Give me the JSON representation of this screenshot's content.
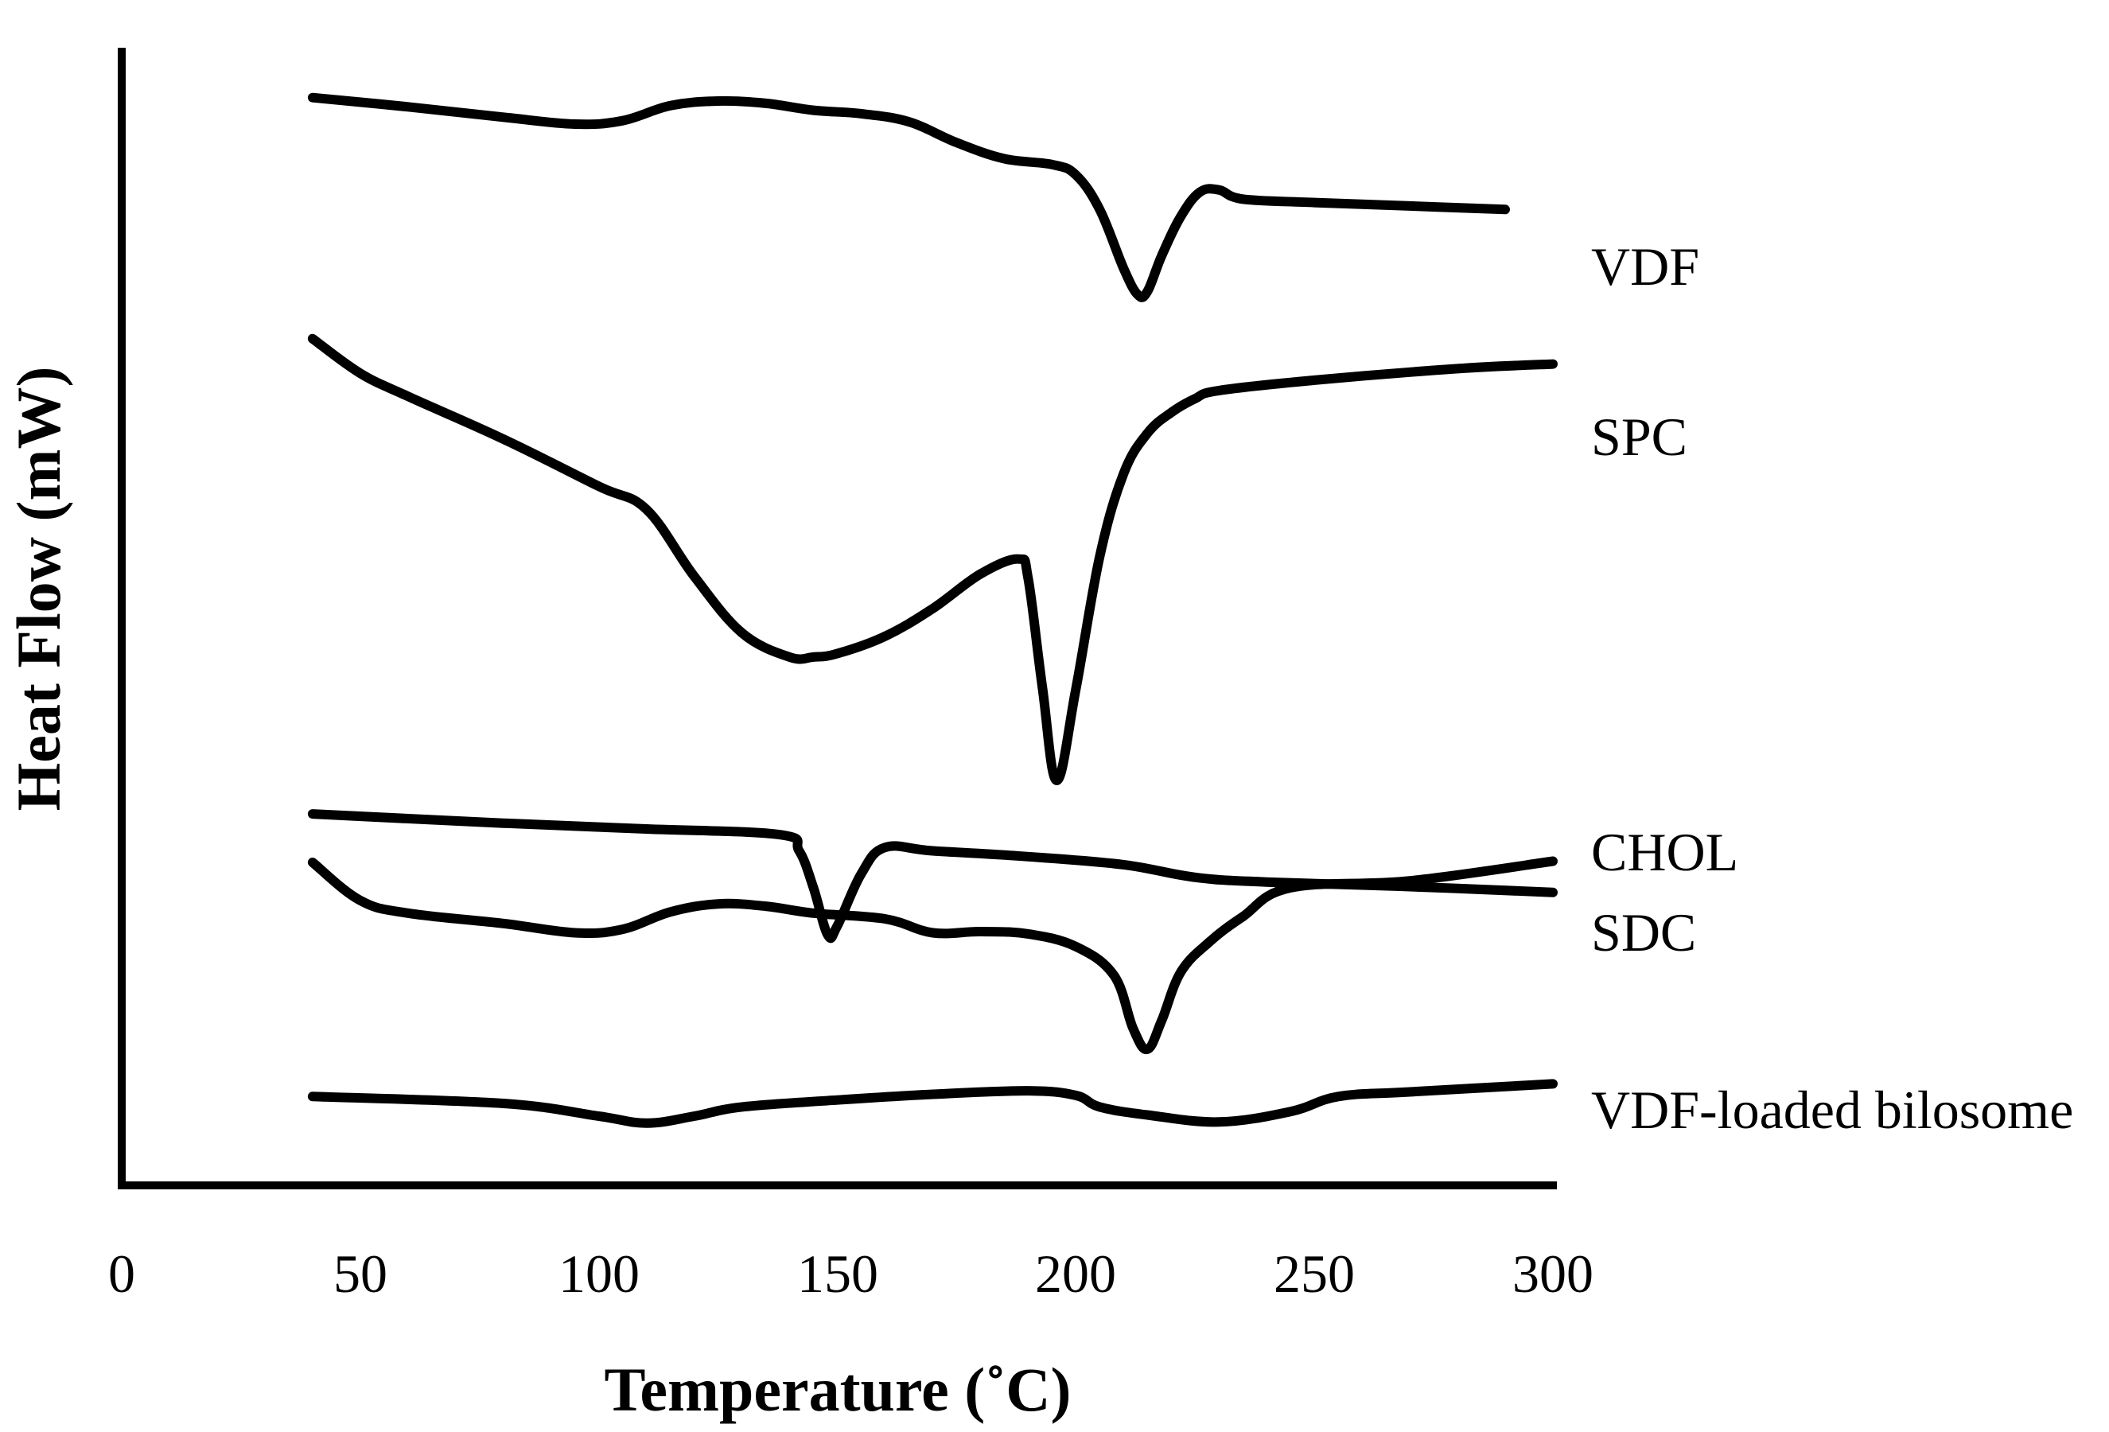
{
  "chart_data": {
    "type": "line",
    "title": "",
    "xlabel": "Temperature (˚C)",
    "ylabel": "Heat Flow (mW)",
    "xlim": [
      0,
      300
    ],
    "x_ticks": [
      "0",
      "50",
      "100",
      "150",
      "200",
      "250",
      "300"
    ],
    "y_ticks": [],
    "grid": false,
    "note": "y values are relative, stacked thermogram offsets (no numeric y scale shown)",
    "series": [
      {
        "name": "VDF",
        "x": [
          40,
          60,
          80,
          95,
          105,
          115,
          125,
          135,
          145,
          155,
          165,
          175,
          185,
          195,
          200,
          205,
          210,
          213,
          215,
          218,
          222,
          226,
          230,
          235,
          250,
          270,
          290
        ],
        "y": [
          94.3,
          93.5,
          92.6,
          92.0,
          92.3,
          93.6,
          94.0,
          93.8,
          93.2,
          92.9,
          92.2,
          90.4,
          89.0,
          88.5,
          87.6,
          84.6,
          79.5,
          77.2,
          77.5,
          80.6,
          84.0,
          86.1,
          86.3,
          85.5,
          85.2,
          84.9,
          84.6
        ]
      },
      {
        "name": "SPC",
        "x": [
          40,
          50,
          60,
          80,
          100,
          110,
          120,
          130,
          140,
          145,
          150,
          160,
          170,
          180,
          188,
          190,
          193,
          196,
          200,
          205,
          210,
          215,
          220,
          225,
          230,
          250,
          280,
          300
        ],
        "y": [
          73.4,
          70.4,
          68.4,
          64.7,
          60.6,
          58.6,
          52.8,
          47.9,
          45.8,
          45.8,
          46.1,
          47.6,
          50.0,
          53.0,
          54.3,
          52.6,
          43.1,
          35.1,
          43.0,
          54.5,
          61.7,
          65.2,
          67.0,
          68.2,
          68.9,
          69.8,
          70.8,
          71.2
        ]
      },
      {
        "name": "CHOL",
        "x": [
          40,
          80,
          110,
          138,
          142,
          145,
          148,
          150,
          155,
          160,
          170,
          190,
          210,
          225,
          240,
          270,
          300
        ],
        "y": [
          32.2,
          31.4,
          30.9,
          30.4,
          29.0,
          25.8,
          21.7,
          22.5,
          27.0,
          29.3,
          29.0,
          28.5,
          27.8,
          26.7,
          26.3,
          25.9,
          25.4
        ]
      },
      {
        "name": "SDC",
        "x": [
          40,
          50,
          60,
          80,
          95,
          105,
          115,
          125,
          135,
          145,
          160,
          170,
          180,
          190,
          200,
          208,
          212,
          215,
          218,
          222,
          228,
          235,
          245,
          270,
          300
        ],
        "y": [
          28.0,
          24.7,
          23.6,
          22.7,
          21.9,
          22.2,
          23.7,
          24.4,
          24.2,
          23.6,
          23.1,
          21.9,
          22.0,
          21.8,
          20.7,
          18.2,
          13.6,
          11.8,
          14.3,
          18.5,
          21.1,
          23.3,
          25.8,
          26.4,
          28.1
        ]
      },
      {
        "name": "VDF-loaded bilosome",
        "x": [
          40,
          80,
          100,
          110,
          120,
          130,
          150,
          170,
          190,
          200,
          205,
          215,
          230,
          245,
          255,
          270,
          300
        ],
        "y": [
          7.7,
          7.1,
          6.0,
          5.4,
          6.0,
          6.8,
          7.4,
          7.9,
          8.2,
          7.8,
          6.8,
          6.1,
          5.5,
          6.4,
          7.7,
          8.1,
          8.8
        ]
      }
    ]
  }
}
